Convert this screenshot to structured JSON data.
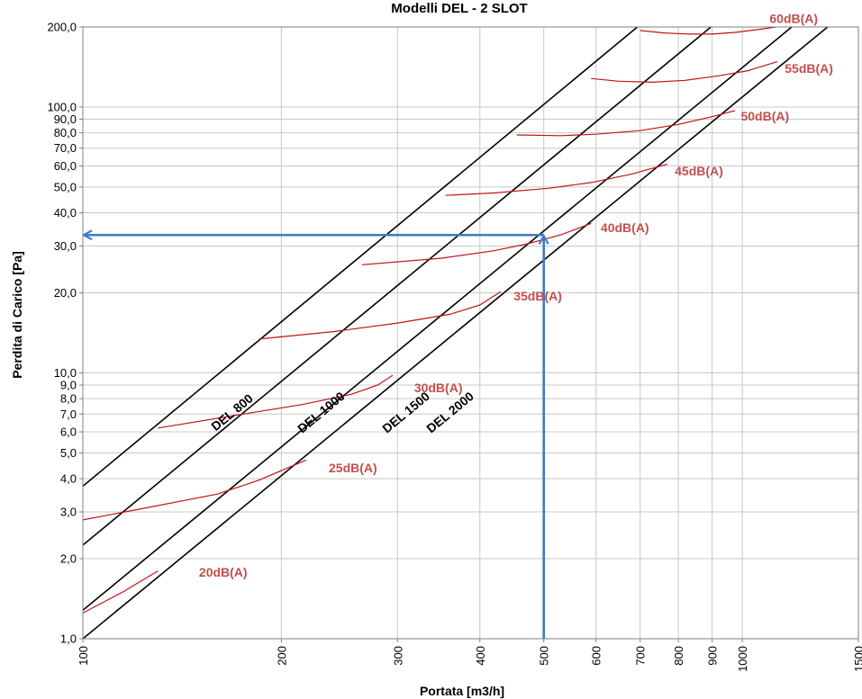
{
  "chart_data": {
    "type": "line",
    "title": "Modelli DEL - 2 SLOT",
    "xlabel": "Portata [m3/h]",
    "ylabel": "Perdita di Carico [Pa]",
    "xscale": "log",
    "yscale": "log",
    "xlim": [
      100,
      1500
    ],
    "ylim": [
      1,
      200
    ],
    "grid": true,
    "x_ticks": [
      100,
      200,
      300,
      400,
      500,
      600,
      700,
      800,
      900,
      1000,
      1500
    ],
    "x_tick_labels": [
      "100",
      "200",
      "300",
      "400",
      "500",
      "600",
      "700",
      "800",
      "900",
      "1000",
      "1500"
    ],
    "y_ticks": [
      1,
      2,
      3,
      4,
      5,
      6,
      7,
      8,
      9,
      10,
      20,
      30,
      40,
      50,
      60,
      70,
      80,
      90,
      100,
      200
    ],
    "y_tick_labels": [
      "1,0",
      "2,0",
      "3,0",
      "4,0",
      "5,0",
      "6,0",
      "7,0",
      "8,0",
      "9,0",
      "10,0",
      "20,0",
      "30,0",
      "40,0",
      "50,0",
      "60,0",
      "70,0",
      "80,0",
      "90,0",
      "100,0",
      "200,0"
    ],
    "models": [
      {
        "name": "DEL 800",
        "label": "DEL 800",
        "points": [
          [
            100,
            3.75
          ],
          [
            700,
            204
          ]
        ],
        "label_at": [
          170,
          6.9
        ]
      },
      {
        "name": "DEL 1000",
        "label": "DEL 1000",
        "points": [
          [
            100,
            2.25
          ],
          [
            905,
            204
          ]
        ],
        "label_at": [
          232,
          6.9
        ]
      },
      {
        "name": "DEL 1500",
        "label": "DEL 1500",
        "points": [
          [
            100,
            1.28
          ],
          [
            1200,
            204
          ]
        ],
        "label_at": [
          312,
          6.9
        ]
      },
      {
        "name": "DEL 2000",
        "label": "DEL 2000",
        "points": [
          [
            100,
            1.0
          ],
          [
            1360,
            204
          ]
        ],
        "label_at": [
          364,
          6.9
        ]
      }
    ],
    "noise_curves": [
      {
        "name": "20dB(A)",
        "label": "20dB(A)",
        "points": [
          [
            100,
            1.25
          ],
          [
            115,
            1.5
          ],
          [
            130,
            1.8
          ]
        ],
        "label_at": [
          150,
          1.78
        ]
      },
      {
        "name": "25dB(A)",
        "label": "25dB(A)",
        "points": [
          [
            100,
            2.8
          ],
          [
            120,
            3.05
          ],
          [
            160,
            3.5
          ],
          [
            185,
            3.95
          ],
          [
            218,
            4.7
          ]
        ],
        "label_at": [
          236,
          4.4
        ]
      },
      {
        "name": "30dB(A)",
        "label": "30dB(A)",
        "points": [
          [
            130,
            6.2
          ],
          [
            175,
            7.0
          ],
          [
            215,
            7.6
          ],
          [
            255,
            8.3
          ],
          [
            280,
            9.0
          ],
          [
            295,
            9.8
          ]
        ],
        "label_at": [
          318,
          8.8
        ]
      },
      {
        "name": "35dB(A)",
        "label": "35dB(A)",
        "points": [
          [
            185,
            13.4
          ],
          [
            240,
            14.3
          ],
          [
            300,
            15.4
          ],
          [
            360,
            16.6
          ],
          [
            400,
            18.0
          ],
          [
            430,
            20.2
          ]
        ],
        "label_at": [
          450,
          19.5
        ]
      },
      {
        "name": "40dB(A)",
        "label": "40dB(A)",
        "points": [
          [
            265,
            25.5
          ],
          [
            350,
            27.0
          ],
          [
            420,
            28.8
          ],
          [
            470,
            30.5
          ],
          [
            530,
            33.0
          ],
          [
            590,
            36.5
          ]
        ],
        "label_at": [
          610,
          35.2
        ]
      },
      {
        "name": "45dB(A)",
        "label": "45dB(A)",
        "points": [
          [
            355,
            46.5
          ],
          [
            420,
            47.5
          ],
          [
            510,
            49.5
          ],
          [
            590,
            52.0
          ],
          [
            680,
            56.0
          ],
          [
            770,
            61.0
          ]
        ],
        "label_at": [
          790,
          57.5
        ]
      },
      {
        "name": "50dB(A)",
        "label": "50dB(A)",
        "points": [
          [
            455,
            78.5
          ],
          [
            530,
            78.0
          ],
          [
            600,
            79.0
          ],
          [
            700,
            81.5
          ],
          [
            800,
            86.0
          ],
          [
            900,
            92.0
          ],
          [
            975,
            97.0
          ]
        ],
        "label_at": [
          995,
          92.5
        ]
      },
      {
        "name": "55dB(A)",
        "label": "55dB(A)",
        "points": [
          [
            590,
            128
          ],
          [
            650,
            125
          ],
          [
            730,
            124
          ],
          [
            820,
            126
          ],
          [
            920,
            131
          ],
          [
            1020,
            137
          ],
          [
            1130,
            148
          ]
        ],
        "label_at": [
          1160,
          140
        ]
      },
      {
        "name": "60dB(A)",
        "label": "60dB(A)",
        "points": [
          [
            700,
            194
          ],
          [
            760,
            190
          ],
          [
            830,
            188
          ],
          [
            900,
            188
          ],
          [
            980,
            191
          ],
          [
            1080,
            197
          ],
          [
            1170,
            203
          ]
        ],
        "label_at": [
          1100,
          215
        ]
      }
    ],
    "example_selection": {
      "flow": 500,
      "pressure_drop": 33,
      "points": [
        [
          500,
          1.0
        ],
        [
          500,
          33
        ],
        [
          100,
          33
        ]
      ]
    },
    "colors": {
      "model_line": "#000000",
      "noise_curve": "#c0141a",
      "noise_label": "#c0504d",
      "selection_arrow": "#3b7dc4",
      "grid": "#c8c8c8"
    }
  }
}
